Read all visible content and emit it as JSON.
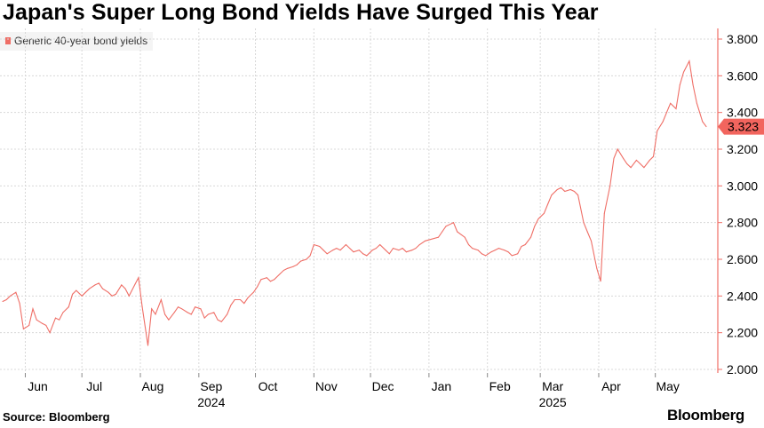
{
  "title": "Japan's Super Long Bond Yields Have Surged This Year",
  "source": "Source: Bloomberg",
  "brand": "Bloomberg",
  "colors": {
    "series": "#ef6e66",
    "badge": "#f2655e",
    "grid": "#d8d8d8"
  },
  "chart_data": {
    "type": "line",
    "title": "Japan's Super Long Bond Yields Have Surged This Year",
    "legend": {
      "position": "top-left"
    },
    "grid": true,
    "x_range": [
      "2024-05-20",
      "2025-05-28"
    ],
    "ylim": [
      2.0,
      3.8
    ],
    "yticks": [
      "2.000",
      "2.200",
      "2.400",
      "2.600",
      "2.800",
      "3.000",
      "3.200",
      "3.400",
      "3.600",
      "3.800"
    ],
    "month_ticks": [
      {
        "label": "Jun",
        "date": "2024-06-01"
      },
      {
        "label": "Jul",
        "date": "2024-07-01"
      },
      {
        "label": "Aug",
        "date": "2024-08-01"
      },
      {
        "label": "Sep",
        "date": "2024-09-01"
      },
      {
        "label": "Oct",
        "date": "2024-10-01"
      },
      {
        "label": "Nov",
        "date": "2024-11-01"
      },
      {
        "label": "Dec",
        "date": "2024-12-01"
      },
      {
        "label": "Jan",
        "date": "2025-01-01"
      },
      {
        "label": "Feb",
        "date": "2025-02-01"
      },
      {
        "label": "Mar",
        "date": "2025-03-01"
      },
      {
        "label": "Apr",
        "date": "2025-04-01"
      },
      {
        "label": "May",
        "date": "2025-05-01"
      }
    ],
    "year_labels": [
      {
        "label": "2024",
        "date": "2024-09-01"
      },
      {
        "label": "2025",
        "date": "2025-03-01"
      }
    ],
    "last_value_label": "3.323",
    "series": [
      {
        "name": "Generic 40-year bond yields",
        "points": [
          [
            "2024-05-20",
            2.37
          ],
          [
            "2024-05-22",
            2.38
          ],
          [
            "2024-05-24",
            2.4
          ],
          [
            "2024-05-27",
            2.42
          ],
          [
            "2024-05-29",
            2.36
          ],
          [
            "2024-05-31",
            2.22
          ],
          [
            "2024-06-03",
            2.24
          ],
          [
            "2024-06-05",
            2.33
          ],
          [
            "2024-06-07",
            2.27
          ],
          [
            "2024-06-10",
            2.25
          ],
          [
            "2024-06-12",
            2.24
          ],
          [
            "2024-06-14",
            2.2
          ],
          [
            "2024-06-17",
            2.28
          ],
          [
            "2024-06-19",
            2.27
          ],
          [
            "2024-06-21",
            2.31
          ],
          [
            "2024-06-24",
            2.34
          ],
          [
            "2024-06-26",
            2.41
          ],
          [
            "2024-06-28",
            2.43
          ],
          [
            "2024-07-01",
            2.4
          ],
          [
            "2024-07-03",
            2.42
          ],
          [
            "2024-07-05",
            2.44
          ],
          [
            "2024-07-08",
            2.46
          ],
          [
            "2024-07-10",
            2.47
          ],
          [
            "2024-07-12",
            2.44
          ],
          [
            "2024-07-15",
            2.42
          ],
          [
            "2024-07-17",
            2.4
          ],
          [
            "2024-07-19",
            2.41
          ],
          [
            "2024-07-22",
            2.46
          ],
          [
            "2024-07-24",
            2.44
          ],
          [
            "2024-07-26",
            2.4
          ],
          [
            "2024-07-29",
            2.46
          ],
          [
            "2024-07-31",
            2.5
          ],
          [
            "2024-08-02",
            2.34
          ],
          [
            "2024-08-05",
            2.13
          ],
          [
            "2024-08-07",
            2.33
          ],
          [
            "2024-08-09",
            2.3
          ],
          [
            "2024-08-12",
            2.38
          ],
          [
            "2024-08-14",
            2.3
          ],
          [
            "2024-08-16",
            2.27
          ],
          [
            "2024-08-19",
            2.31
          ],
          [
            "2024-08-21",
            2.34
          ],
          [
            "2024-08-23",
            2.33
          ],
          [
            "2024-08-26",
            2.31
          ],
          [
            "2024-08-28",
            2.3
          ],
          [
            "2024-08-30",
            2.34
          ],
          [
            "2024-09-02",
            2.33
          ],
          [
            "2024-09-04",
            2.28
          ],
          [
            "2024-09-06",
            2.3
          ],
          [
            "2024-09-09",
            2.31
          ],
          [
            "2024-09-11",
            2.27
          ],
          [
            "2024-09-13",
            2.26
          ],
          [
            "2024-09-16",
            2.3
          ],
          [
            "2024-09-18",
            2.35
          ],
          [
            "2024-09-20",
            2.38
          ],
          [
            "2024-09-23",
            2.38
          ],
          [
            "2024-09-25",
            2.36
          ],
          [
            "2024-09-27",
            2.39
          ],
          [
            "2024-09-30",
            2.42
          ],
          [
            "2024-10-02",
            2.45
          ],
          [
            "2024-10-04",
            2.49
          ],
          [
            "2024-10-07",
            2.5
          ],
          [
            "2024-10-09",
            2.48
          ],
          [
            "2024-10-11",
            2.49
          ],
          [
            "2024-10-14",
            2.52
          ],
          [
            "2024-10-16",
            2.54
          ],
          [
            "2024-10-18",
            2.55
          ],
          [
            "2024-10-21",
            2.56
          ],
          [
            "2024-10-23",
            2.57
          ],
          [
            "2024-10-25",
            2.59
          ],
          [
            "2024-10-28",
            2.6
          ],
          [
            "2024-10-30",
            2.62
          ],
          [
            "2024-11-01",
            2.68
          ],
          [
            "2024-11-04",
            2.67
          ],
          [
            "2024-11-06",
            2.65
          ],
          [
            "2024-11-08",
            2.63
          ],
          [
            "2024-11-11",
            2.65
          ],
          [
            "2024-11-13",
            2.66
          ],
          [
            "2024-11-15",
            2.65
          ],
          [
            "2024-11-18",
            2.68
          ],
          [
            "2024-11-20",
            2.66
          ],
          [
            "2024-11-22",
            2.64
          ],
          [
            "2024-11-25",
            2.65
          ],
          [
            "2024-11-27",
            2.63
          ],
          [
            "2024-11-29",
            2.62
          ],
          [
            "2024-12-02",
            2.65
          ],
          [
            "2024-12-04",
            2.66
          ],
          [
            "2024-12-06",
            2.68
          ],
          [
            "2024-12-09",
            2.65
          ],
          [
            "2024-12-11",
            2.63
          ],
          [
            "2024-12-13",
            2.66
          ],
          [
            "2024-12-16",
            2.65
          ],
          [
            "2024-12-18",
            2.66
          ],
          [
            "2024-12-20",
            2.64
          ],
          [
            "2024-12-23",
            2.65
          ],
          [
            "2024-12-25",
            2.66
          ],
          [
            "2024-12-27",
            2.68
          ],
          [
            "2024-12-30",
            2.7
          ],
          [
            "2025-01-06",
            2.72
          ],
          [
            "2025-01-08",
            2.75
          ],
          [
            "2025-01-10",
            2.78
          ],
          [
            "2025-01-14",
            2.8
          ],
          [
            "2025-01-16",
            2.75
          ],
          [
            "2025-01-20",
            2.72
          ],
          [
            "2025-01-22",
            2.68
          ],
          [
            "2025-01-24",
            2.66
          ],
          [
            "2025-01-27",
            2.65
          ],
          [
            "2025-01-29",
            2.63
          ],
          [
            "2025-01-31",
            2.62
          ],
          [
            "2025-02-03",
            2.64
          ],
          [
            "2025-02-05",
            2.65
          ],
          [
            "2025-02-07",
            2.66
          ],
          [
            "2025-02-10",
            2.65
          ],
          [
            "2025-02-12",
            2.64
          ],
          [
            "2025-02-14",
            2.62
          ],
          [
            "2025-02-17",
            2.63
          ],
          [
            "2025-02-19",
            2.67
          ],
          [
            "2025-02-21",
            2.68
          ],
          [
            "2025-02-24",
            2.72
          ],
          [
            "2025-02-26",
            2.78
          ],
          [
            "2025-02-28",
            2.82
          ],
          [
            "2025-03-03",
            2.85
          ],
          [
            "2025-03-05",
            2.9
          ],
          [
            "2025-03-07",
            2.95
          ],
          [
            "2025-03-10",
            2.98
          ],
          [
            "2025-03-12",
            2.99
          ],
          [
            "2025-03-14",
            2.97
          ],
          [
            "2025-03-17",
            2.98
          ],
          [
            "2025-03-19",
            2.97
          ],
          [
            "2025-03-21",
            2.95
          ],
          [
            "2025-03-24",
            2.8
          ],
          [
            "2025-03-26",
            2.75
          ],
          [
            "2025-03-28",
            2.7
          ],
          [
            "2025-03-31",
            2.55
          ],
          [
            "2025-04-02",
            2.48
          ],
          [
            "2025-04-04",
            2.85
          ],
          [
            "2025-04-07",
            3.0
          ],
          [
            "2025-04-09",
            3.15
          ],
          [
            "2025-04-11",
            3.2
          ],
          [
            "2025-04-14",
            3.15
          ],
          [
            "2025-04-16",
            3.12
          ],
          [
            "2025-04-18",
            3.1
          ],
          [
            "2025-04-21",
            3.14
          ],
          [
            "2025-04-23",
            3.12
          ],
          [
            "2025-04-25",
            3.1
          ],
          [
            "2025-04-28",
            3.14
          ],
          [
            "2025-04-30",
            3.16
          ],
          [
            "2025-05-02",
            3.3
          ],
          [
            "2025-05-05",
            3.35
          ],
          [
            "2025-05-07",
            3.4
          ],
          [
            "2025-05-09",
            3.45
          ],
          [
            "2025-05-12",
            3.42
          ],
          [
            "2025-05-14",
            3.55
          ],
          [
            "2025-05-16",
            3.62
          ],
          [
            "2025-05-19",
            3.68
          ],
          [
            "2025-05-21",
            3.55
          ],
          [
            "2025-05-23",
            3.45
          ],
          [
            "2025-05-26",
            3.35
          ],
          [
            "2025-05-28",
            3.323
          ]
        ]
      }
    ]
  }
}
